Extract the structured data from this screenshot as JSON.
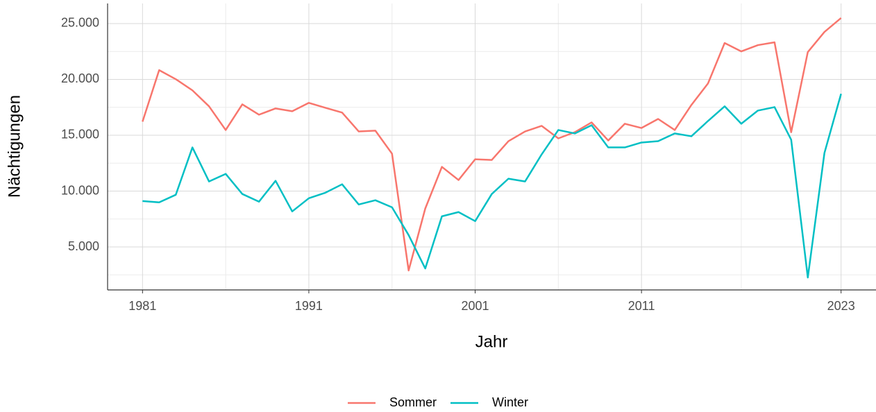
{
  "chart_data": {
    "type": "line",
    "x_label": "Jahr",
    "y_label": "Nächtigungen",
    "x": [
      1981,
      1982,
      1983,
      1984,
      1985,
      1986,
      1987,
      1988,
      1989,
      1990,
      1991,
      1992,
      1993,
      1994,
      1995,
      1996,
      1997,
      1998,
      1999,
      2000,
      2001,
      2002,
      2003,
      2004,
      2005,
      2006,
      2007,
      2008,
      2009,
      2010,
      2011,
      2012,
      2013,
      2014,
      2015,
      2016,
      2017,
      2018,
      2019,
      2020,
      2021,
      2022,
      2023
    ],
    "series": [
      {
        "name": "Sommer",
        "color": "#F8766D",
        "values": [
          16220,
          20830,
          20020,
          19020,
          17590,
          15470,
          17770,
          16840,
          17400,
          17150,
          17900,
          17460,
          17030,
          15340,
          15410,
          13350,
          2890,
          8440,
          12170,
          10990,
          12850,
          12790,
          14470,
          15340,
          15840,
          14720,
          15280,
          16150,
          14530,
          16030,
          15650,
          16460,
          15470,
          17710,
          19640,
          23260,
          22510,
          23070,
          23320,
          15270,
          22450,
          24250,
          25500
        ]
      },
      {
        "name": "Winter",
        "color": "#00BFC4",
        "values": [
          9110,
          8990,
          9670,
          13910,
          10860,
          11540,
          9740,
          9050,
          10920,
          8180,
          9360,
          9860,
          10610,
          8800,
          9180,
          8550,
          6060,
          3070,
          7740,
          8120,
          7310,
          9740,
          11110,
          10860,
          13290,
          15470,
          15160,
          15900,
          13910,
          13910,
          14350,
          14470,
          15160,
          14910,
          16280,
          17590,
          16030,
          17210,
          17520,
          14600,
          2260,
          13410,
          18710
        ]
      }
    ],
    "xlim": [
      1978.9,
      2025.1
    ],
    "xticks": [
      1981,
      1991,
      2001,
      2011,
      2023
    ],
    "minor_xticks": [
      1986,
      1996,
      2006,
      2017
    ],
    "ylim": [
      1150,
      26800
    ],
    "yticks": [
      {
        "value": 5000,
        "label": "5.000"
      },
      {
        "value": 10000,
        "label": "10.000"
      },
      {
        "value": 15000,
        "label": "15.000"
      },
      {
        "value": 20000,
        "label": "20.000"
      },
      {
        "value": 25000,
        "label": "25.000"
      }
    ],
    "minor_yticks": [
      2500,
      7500,
      12500,
      17500,
      22500
    ],
    "grid": true,
    "legend": "bottom"
  }
}
